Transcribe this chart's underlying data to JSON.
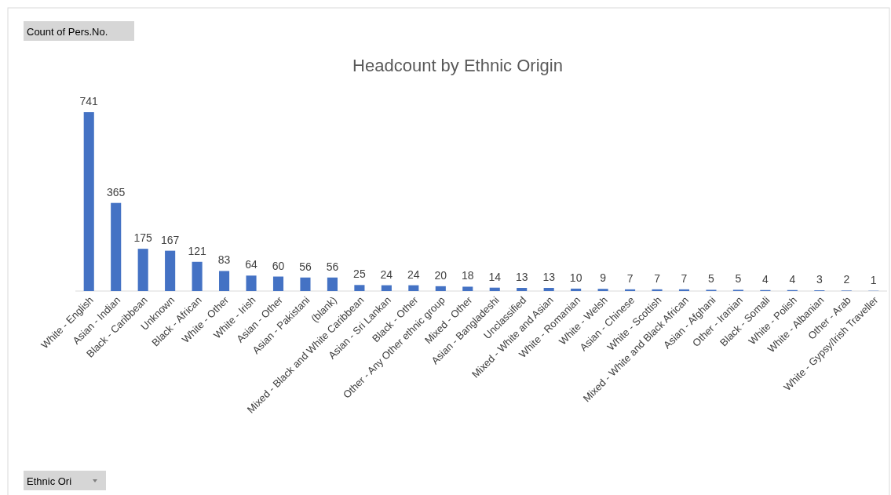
{
  "chart_data": {
    "type": "bar",
    "title": "Headcount by Ethnic Origin",
    "categories": [
      "White - English",
      "Asian - Indian",
      "Black - Caribbean",
      "Unknown",
      "Black - African",
      "White - Other",
      "White - Irish",
      "Asian - Other",
      "Asian - Pakistani",
      "(blank)",
      "Mixed - Black and White Caribbean",
      "Asian - Sri Lankan",
      "Black - Other",
      "Other - Any Other ethnic group",
      "Mixed - Other",
      "Asian - Bangladeshi",
      "Unclassified",
      "Mixed - White and Asian",
      "White - Romanian",
      "White - Welsh",
      "Asian - Chinese",
      "White - Scottish",
      "Mixed - White and Black African",
      "Asian - Afghani",
      "Other - Iranian",
      "Black - Somali",
      "White - Polish",
      "White - Albanian",
      "Other - Arab",
      "White - Gypsy/Irish Traveller"
    ],
    "values": [
      741,
      365,
      175,
      167,
      121,
      83,
      64,
      60,
      56,
      56,
      25,
      24,
      24,
      20,
      18,
      14,
      13,
      13,
      10,
      9,
      7,
      7,
      7,
      5,
      5,
      4,
      4,
      3,
      2,
      1
    ],
    "color": "#4472c4",
    "data_labels": true,
    "annotations": [
      "Count of Pers.No.",
      "Ethnic Ori"
    ]
  }
}
